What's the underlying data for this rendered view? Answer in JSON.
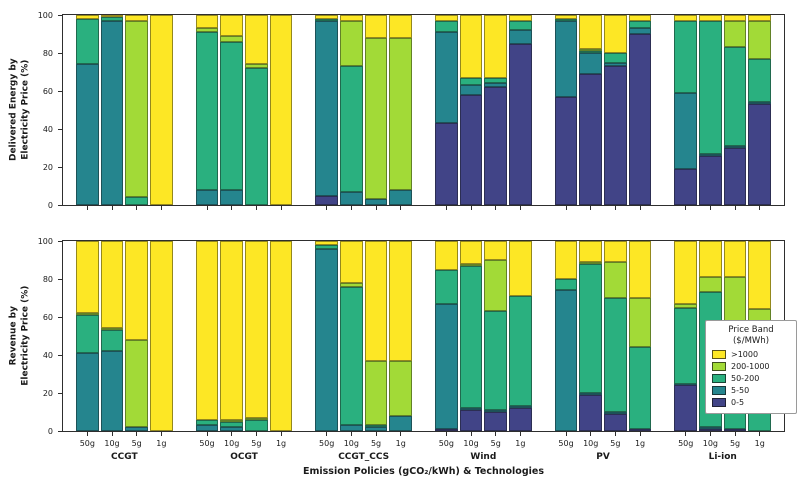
{
  "figure": {
    "xlabel": "Emission Policies (gCO₂/kWh) & Technologies",
    "legend": {
      "title_line1": "Price Band",
      "title_line2": "($/MWh)",
      "entries": [
        {
          "key": "gt1000",
          "label": ">1000",
          "color": "#fde725"
        },
        {
          "key": "b200-1000",
          "label": "200-1000",
          "color": "#a2da37"
        },
        {
          "key": "b50-200",
          "label": "50-200",
          "color": "#2ab07f"
        },
        {
          "key": "b5-50",
          "label": "5-50",
          "color": "#25858e"
        },
        {
          "key": "b0-5",
          "label": "0-5",
          "color": "#414487"
        }
      ]
    }
  },
  "chart_data": [
    {
      "type": "bar",
      "stacked": true,
      "ylabel_line1": "Delivered Energy by",
      "ylabel_line2": "Electricity Price (%)",
      "ylim": [
        0,
        100
      ],
      "yticks": [
        0,
        20,
        40,
        60,
        80,
        100
      ],
      "grid": false,
      "groups": [
        "CCGT",
        "OCGT",
        "CCGT_CCS",
        "Wind",
        "PV",
        "Li-ion"
      ],
      "policies": [
        "50g",
        "10g",
        "5g",
        "1g"
      ],
      "bar_order": "values are 24 bars: groups in order, 4 policies each; series stack bottom to top",
      "series": [
        {
          "key": "b0-5",
          "name": "0-5",
          "color": "#414487",
          "values": [
            0,
            0,
            0,
            0,
            0,
            0,
            0,
            0,
            5,
            0,
            0,
            0,
            43,
            58,
            62,
            85,
            57,
            69,
            73,
            90,
            19,
            26,
            30,
            53
          ]
        },
        {
          "key": "b5-50",
          "name": "5-50",
          "color": "#25858e",
          "values": [
            74,
            97,
            0,
            0,
            8,
            8,
            0,
            0,
            92,
            7,
            3,
            8,
            48,
            5,
            2,
            7,
            40,
            11,
            2,
            3,
            40,
            1,
            1,
            1
          ]
        },
        {
          "key": "b50-200",
          "name": "50-200",
          "color": "#2ab07f",
          "values": [
            24,
            2,
            4,
            0,
            83,
            78,
            72,
            0,
            1,
            66,
            0,
            0,
            6,
            4,
            3,
            5,
            1,
            1,
            5,
            4,
            38,
            70,
            52,
            23
          ]
        },
        {
          "key": "b200-1000",
          "name": "200-1000",
          "color": "#a2da37",
          "values": [
            0,
            0,
            93,
            0,
            2,
            3,
            2,
            0,
            0,
            24,
            85,
            80,
            0,
            0,
            0,
            0,
            0,
            1,
            0,
            0,
            0,
            0,
            14,
            20
          ]
        },
        {
          "key": "gt1000",
          "name": ">1000",
          "color": "#fde725",
          "values": [
            2,
            1,
            3,
            100,
            7,
            11,
            26,
            100,
            2,
            3,
            12,
            12,
            3,
            33,
            33,
            3,
            2,
            18,
            20,
            3,
            3,
            3,
            3,
            3
          ]
        }
      ]
    },
    {
      "type": "bar",
      "stacked": true,
      "ylabel_line1": "Revenue by",
      "ylabel_line2": "Electricity Price (%)",
      "ylim": [
        0,
        100
      ],
      "yticks": [
        0,
        20,
        40,
        60,
        80,
        100
      ],
      "grid": false,
      "groups": [
        "CCGT",
        "OCGT",
        "CCGT_CCS",
        "Wind",
        "PV",
        "Li-ion"
      ],
      "policies": [
        "50g",
        "10g",
        "5g",
        "1g"
      ],
      "bar_order": "values are 24 bars: groups in order, 4 policies each; series stack bottom to top",
      "series": [
        {
          "key": "b0-5",
          "name": "0-5",
          "color": "#414487",
          "values": [
            0,
            0,
            0,
            0,
            0,
            0,
            0,
            0,
            0,
            0,
            0,
            0,
            1,
            11,
            10,
            12,
            0,
            19,
            9,
            1,
            24,
            1,
            1,
            0
          ]
        },
        {
          "key": "b5-50",
          "name": "5-50",
          "color": "#25858e",
          "values": [
            41,
            42,
            2,
            0,
            3,
            2,
            0,
            0,
            96,
            3,
            2,
            8,
            66,
            1,
            1,
            1,
            74,
            1,
            1,
            0,
            1,
            1,
            0,
            0
          ]
        },
        {
          "key": "b50-200",
          "name": "50-200",
          "color": "#2ab07f",
          "values": [
            20,
            11,
            0,
            0,
            3,
            3,
            6,
            0,
            2,
            73,
            1,
            0,
            18,
            75,
            52,
            58,
            6,
            68,
            60,
            43,
            40,
            71,
            40,
            40
          ]
        },
        {
          "key": "b200-1000",
          "name": "200-1000",
          "color": "#a2da37",
          "values": [
            1,
            1,
            46,
            0,
            0,
            1,
            1,
            0,
            0,
            2,
            34,
            29,
            0,
            1,
            27,
            0,
            0,
            1,
            19,
            26,
            2,
            8,
            40,
            24
          ]
        },
        {
          "key": "gt1000",
          "name": ">1000",
          "color": "#fde725",
          "values": [
            38,
            46,
            52,
            100,
            94,
            94,
            93,
            100,
            2,
            22,
            63,
            63,
            15,
            12,
            10,
            29,
            20,
            11,
            11,
            30,
            33,
            19,
            19,
            36
          ]
        }
      ]
    }
  ]
}
